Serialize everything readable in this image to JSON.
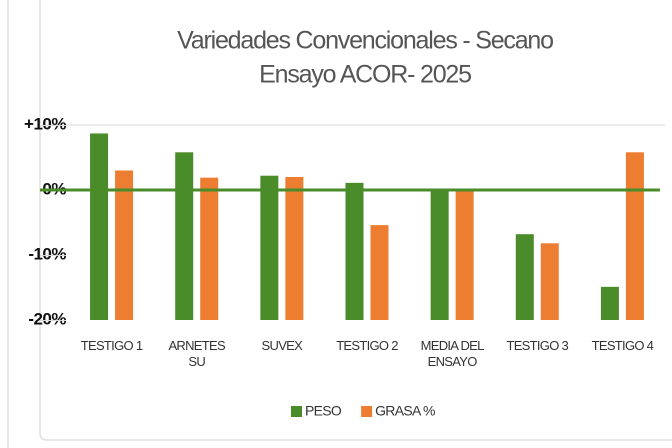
{
  "chart_data": {
    "type": "bar",
    "title": [
      "Variedades Convencionales - Secano",
      "Ensayo ACOR- 2025"
    ],
    "categories": [
      "TESTIGO 1",
      "ARNETES SU",
      "SUVEX",
      "TESTIGO 2",
      "MEDIA DEL ENSAYO",
      "TESTIGO 3",
      "TESTIGO 4"
    ],
    "series": [
      {
        "name": "PESO",
        "color": "#4a8c2a",
        "values": [
          8.7,
          5.8,
          2.2,
          1.1,
          0,
          -6.8,
          -14.9
        ]
      },
      {
        "name": "GRASA %",
        "color": "#ed7d31",
        "values": [
          3.0,
          1.9,
          2.0,
          -5.4,
          0,
          -8.2,
          5.8
        ]
      }
    ],
    "ylim": [
      -20,
      10
    ],
    "yticks": [
      {
        "value": 10,
        "label": "+10%"
      },
      {
        "value": 0,
        "label": "0%"
      },
      {
        "value": -10,
        "label": "-10%"
      },
      {
        "value": -20,
        "label": "-20%"
      }
    ],
    "legend": "bottom"
  }
}
